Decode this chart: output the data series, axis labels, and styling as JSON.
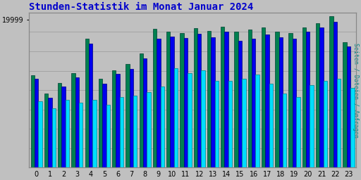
{
  "title": "Stunden-Statistik im Monat Januar 2024",
  "title_color": "#0000cc",
  "title_fontsize": 10,
  "background_color": "#c0c0c0",
  "plot_bg_color": "#c0c0c0",
  "ylabel_right": "Seiten / Dateien / Anfragen",
  "ylabel_right_color": "#008080",
  "xlabel_labels": [
    "0",
    "1",
    "2",
    "3",
    "4",
    "5",
    "6",
    "7",
    "8",
    "9",
    "10",
    "11",
    "12",
    "13",
    "14",
    "15",
    "16",
    "17",
    "18",
    "19",
    "20",
    "21",
    "22",
    "23"
  ],
  "ylim": [
    0,
    21000
  ],
  "ytick_value": 19999,
  "grid_color": "#999999",
  "bar_width": 0.28,
  "series": {
    "green": {
      "color": "#008050",
      "edgecolor": "#004030",
      "values": [
        12500,
        10000,
        11500,
        12800,
        17500,
        12000,
        13200,
        14000,
        15500,
        18800,
        18400,
        18200,
        18900,
        18500,
        19100,
        18400,
        18700,
        19000,
        18400,
        18200,
        19000,
        19600,
        20500,
        17000
      ]
    },
    "blue": {
      "color": "#0000ee",
      "edgecolor": "#000080",
      "values": [
        12000,
        9500,
        11000,
        12200,
        16800,
        11400,
        12700,
        13400,
        14800,
        17500,
        17800,
        17600,
        18100,
        17700,
        18400,
        17200,
        17500,
        18000,
        17700,
        17500,
        18400,
        19000,
        19800,
        16400
      ]
    },
    "cyan": {
      "color": "#00ddff",
      "edgecolor": "#008888",
      "values": [
        9000,
        8000,
        9200,
        8800,
        9200,
        8500,
        9600,
        9800,
        10200,
        11000,
        13500,
        12800,
        13200,
        11800,
        11800,
        12000,
        12600,
        11400,
        10000,
        9600,
        11200,
        11800,
        12000,
        10800
      ]
    }
  }
}
